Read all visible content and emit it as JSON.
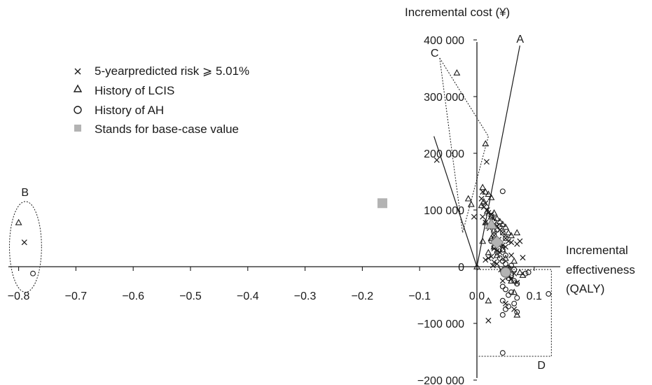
{
  "chart_data": {
    "type": "scatter",
    "xlabel_lines": [
      "Incremental",
      "effectiveness",
      "(QALY)"
    ],
    "ylabel": "Incremental cost (¥)",
    "x_range": [
      -0.81,
      0.13
    ],
    "y_range": [
      -200000,
      400000
    ],
    "x_ticks": [
      {
        "value": -0.8,
        "label": "−0.8"
      },
      {
        "value": -0.7,
        "label": "−0.7"
      },
      {
        "value": -0.6,
        "label": "−0.6"
      },
      {
        "value": -0.5,
        "label": "−0.5"
      },
      {
        "value": -0.4,
        "label": "−0.4"
      },
      {
        "value": -0.3,
        "label": "−0.3"
      },
      {
        "value": -0.2,
        "label": "−0.2"
      },
      {
        "value": -0.1,
        "label": "−0.1"
      },
      {
        "value": 0.0,
        "label": "0.0"
      },
      {
        "value": 0.1,
        "label": "0.1"
      }
    ],
    "y_ticks": [
      {
        "value": 400000,
        "label": "400 000"
      },
      {
        "value": 300000,
        "label": "300 000"
      },
      {
        "value": 200000,
        "label": "200 000"
      },
      {
        "value": 100000,
        "label": "100 000"
      },
      {
        "value": 0,
        "label": "0"
      },
      {
        "value": -100000,
        "label": "−100 000"
      },
      {
        "value": -200000,
        "label": "−200 000"
      }
    ],
    "legend": [
      {
        "marker": "cross",
        "label": "5-yearpredicted risk ⩾ 5.01%"
      },
      {
        "marker": "triangle",
        "label": "History of LCIS"
      },
      {
        "marker": "circle",
        "label": "History of AH"
      },
      {
        "marker": "square",
        "label": "Stands for base-case value"
      }
    ],
    "colors": {
      "marker": "#1a1a1a",
      "base_case": "#b3b3b3",
      "axis": "#1a1a1a"
    },
    "series": [
      {
        "marker": "cross",
        "points": [
          [
            -0.79,
            43000
          ],
          [
            -0.07,
            188000
          ],
          [
            0.017,
            185000
          ],
          [
            0.01,
            132000
          ],
          [
            0.008,
            120000
          ],
          [
            0.015,
            112000
          ],
          [
            0.012,
            105000
          ],
          [
            0.018,
            100000
          ],
          [
            0.02,
            95000
          ],
          [
            0.025,
            92000
          ],
          [
            0.01,
            88000
          ],
          [
            0.028,
            85000
          ],
          [
            0.015,
            78000
          ],
          [
            0.03,
            75000
          ],
          [
            0.035,
            72000
          ],
          [
            0.022,
            68000
          ],
          [
            0.04,
            65000
          ],
          [
            0.045,
            60000
          ],
          [
            0.03,
            55000
          ],
          [
            0.05,
            50000
          ],
          [
            0.038,
            48000
          ],
          [
            0.055,
            45000
          ],
          [
            0.06,
            43000
          ],
          [
            0.07,
            40000
          ],
          [
            0.075,
            45000
          ],
          [
            0.045,
            38000
          ],
          [
            0.05,
            35000
          ],
          [
            0.03,
            32000
          ],
          [
            0.035,
            28000
          ],
          [
            0.04,
            25000
          ],
          [
            0.06,
            20000
          ],
          [
            0.025,
            18000
          ],
          [
            0.02,
            15000
          ],
          [
            0.015,
            12000
          ],
          [
            0.08,
            16000
          ],
          [
            -0.005,
            88000
          ],
          [
            0.03,
            8000
          ],
          [
            0.035,
            5000
          ],
          [
            0.028,
            2000
          ],
          [
            0.042,
            -5000
          ],
          [
            0.05,
            -8000
          ],
          [
            0.065,
            -12000
          ],
          [
            0.055,
            -18000
          ],
          [
            0.06,
            -22000
          ],
          [
            0.045,
            -25000
          ],
          [
            0.07,
            -28000
          ],
          [
            0.05,
            -65000
          ],
          [
            0.065,
            -75000
          ],
          [
            0.02,
            -95000
          ]
        ]
      },
      {
        "marker": "triangle",
        "points": [
          [
            -0.8,
            78000
          ],
          [
            -0.035,
            342000
          ],
          [
            0.015,
            217000
          ],
          [
            -0.015,
            120000
          ],
          [
            0.01,
            140000
          ],
          [
            0.015,
            132000
          ],
          [
            0.02,
            128000
          ],
          [
            0.025,
            122000
          ],
          [
            0.012,
            115000
          ],
          [
            -0.01,
            110000
          ],
          [
            0.008,
            108000
          ],
          [
            0.018,
            98000
          ],
          [
            0.03,
            95000
          ],
          [
            0.025,
            88000
          ],
          [
            0.035,
            85000
          ],
          [
            0.04,
            80000
          ],
          [
            0.015,
            78000
          ],
          [
            0.045,
            75000
          ],
          [
            0.05,
            70000
          ],
          [
            0.03,
            65000
          ],
          [
            0.055,
            60000
          ],
          [
            0.06,
            55000
          ],
          [
            0.025,
            50000
          ],
          [
            0.07,
            60000
          ],
          [
            0.01,
            45000
          ],
          [
            0.04,
            40000
          ],
          [
            0.03,
            35000
          ],
          [
            0.045,
            30000
          ],
          [
            0.02,
            25000
          ],
          [
            0.035,
            20000
          ],
          [
            0.05,
            15000
          ],
          [
            0.065,
            10000
          ],
          [
            0.0,
            0
          ],
          [
            0.055,
            -5000
          ],
          [
            0.075,
            -10000
          ],
          [
            0.08,
            -15000
          ],
          [
            0.06,
            -25000
          ],
          [
            0.065,
            -45000
          ],
          [
            0.02,
            -60000
          ],
          [
            0.07,
            -85000
          ]
        ]
      },
      {
        "marker": "circle",
        "points": [
          [
            -0.775,
            -12000
          ],
          [
            0.045,
            133000
          ],
          [
            0.025,
            90000
          ],
          [
            0.03,
            80000
          ],
          [
            0.04,
            70000
          ],
          [
            0.035,
            65000
          ],
          [
            0.045,
            60000
          ],
          [
            0.03,
            55000
          ],
          [
            0.05,
            50000
          ],
          [
            0.025,
            45000
          ],
          [
            0.04,
            40000
          ],
          [
            0.03,
            35000
          ],
          [
            0.045,
            30000
          ],
          [
            0.035,
            25000
          ],
          [
            0.05,
            20000
          ],
          [
            0.04,
            15000
          ],
          [
            0.045,
            10000
          ],
          [
            0.05,
            5000
          ],
          [
            0.06,
            2000
          ],
          [
            0.055,
            -2000
          ],
          [
            0.065,
            -5000
          ],
          [
            0.045,
            -8000
          ],
          [
            0.05,
            -10000
          ],
          [
            0.085,
            -12000
          ],
          [
            0.09,
            -10000
          ],
          [
            0.06,
            -15000
          ],
          [
            0.055,
            -20000
          ],
          [
            0.065,
            -25000
          ],
          [
            0.07,
            -30000
          ],
          [
            0.045,
            -35000
          ],
          [
            0.05,
            -40000
          ],
          [
            0.06,
            -45000
          ],
          [
            0.055,
            -50000
          ],
          [
            0.07,
            -55000
          ],
          [
            0.045,
            -60000
          ],
          [
            0.065,
            -65000
          ],
          [
            0.055,
            -70000
          ],
          [
            0.05,
            -75000
          ],
          [
            0.07,
            -80000
          ],
          [
            0.045,
            -85000
          ],
          [
            0.125,
            -48000
          ],
          [
            0.045,
            -152000
          ]
        ]
      }
    ],
    "base_case": [
      {
        "x": -0.165,
        "y": 112000,
        "shape": "square"
      },
      {
        "x": 0.025,
        "y": 75000,
        "shape": "triangle"
      },
      {
        "x": 0.035,
        "y": 43000,
        "shape": "diamond"
      },
      {
        "x": 0.05,
        "y": -10000,
        "shape": "circle"
      }
    ],
    "threshold_lines": [
      {
        "label": "A",
        "from": [
          0.0,
          0
        ],
        "to": [
          0.075,
          390000
        ]
      },
      {
        "label": "",
        "from": [
          0.0,
          0
        ],
        "to": [
          -0.075,
          230000
        ]
      }
    ],
    "annotations": {
      "B": {
        "label": "B",
        "shape": "ellipse",
        "center": [
          -0.788,
          35000
        ],
        "radius": [
          0.028,
          80000
        ]
      },
      "C": {
        "label": "C",
        "shape": "polygon",
        "points": [
          [
            -0.065,
            368000
          ],
          [
            0.02,
            230000
          ],
          [
            -0.025,
            60000
          ]
        ]
      },
      "D": {
        "label": "D",
        "shape": "rect",
        "from": [
          0.0,
          -5000
        ],
        "to": [
          0.13,
          -158000
        ]
      }
    }
  }
}
